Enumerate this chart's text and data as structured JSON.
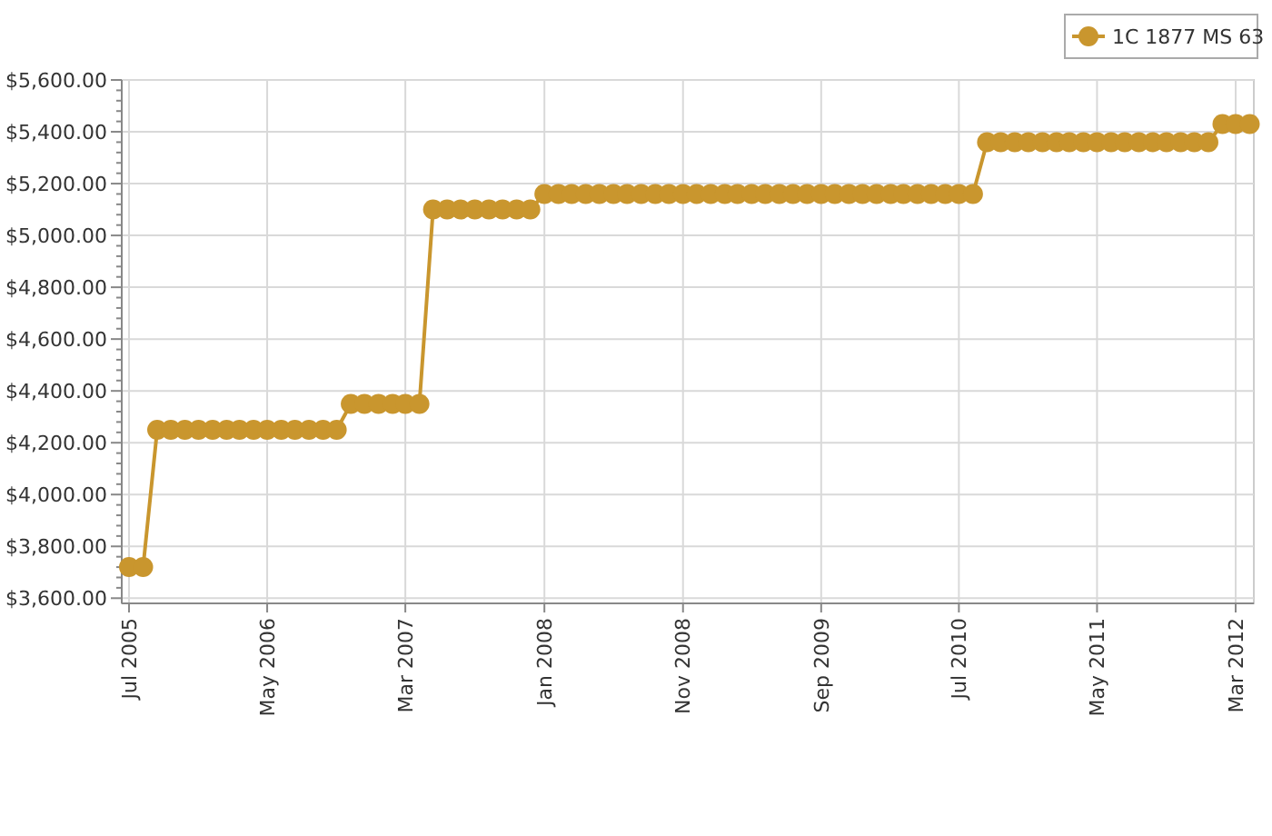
{
  "chart_data": {
    "type": "line",
    "x": [
      "2005-07",
      "2005-08",
      "2005-09",
      "2005-10",
      "2005-11",
      "2005-12",
      "2006-01",
      "2006-02",
      "2006-03",
      "2006-04",
      "2006-05",
      "2006-06",
      "2006-07",
      "2006-08",
      "2006-09",
      "2006-10",
      "2006-11",
      "2006-12",
      "2007-01",
      "2007-02",
      "2007-03",
      "2007-04",
      "2007-05",
      "2007-06",
      "2007-07",
      "2007-08",
      "2007-09",
      "2007-10",
      "2007-11",
      "2007-12",
      "2008-01",
      "2008-02",
      "2008-03",
      "2008-04",
      "2008-05",
      "2008-06",
      "2008-07",
      "2008-08",
      "2008-09",
      "2008-10",
      "2008-11",
      "2008-12",
      "2009-01",
      "2009-02",
      "2009-03",
      "2009-04",
      "2009-05",
      "2009-06",
      "2009-07",
      "2009-08",
      "2009-09",
      "2009-10",
      "2009-11",
      "2009-12",
      "2010-01",
      "2010-02",
      "2010-03",
      "2010-04",
      "2010-05",
      "2010-06",
      "2010-07",
      "2010-08",
      "2010-09",
      "2010-10",
      "2010-11",
      "2010-12",
      "2011-01",
      "2011-02",
      "2011-03",
      "2011-04",
      "2011-05",
      "2011-06",
      "2011-07",
      "2011-08",
      "2011-09",
      "2011-10",
      "2011-11",
      "2011-12",
      "2012-01",
      "2012-02",
      "2012-03",
      "2012-04"
    ],
    "series": [
      {
        "name": "1C 1877 MS 63",
        "color": "#c9962e",
        "values": [
          3720,
          3720,
          4250,
          4250,
          4250,
          4250,
          4250,
          4250,
          4250,
          4250,
          4250,
          4250,
          4250,
          4250,
          4250,
          4250,
          4350,
          4350,
          4350,
          4350,
          4350,
          4350,
          5100,
          5100,
          5100,
          5100,
          5100,
          5100,
          5100,
          5100,
          5160,
          5160,
          5160,
          5160,
          5160,
          5160,
          5160,
          5160,
          5160,
          5160,
          5160,
          5160,
          5160,
          5160,
          5160,
          5160,
          5160,
          5160,
          5160,
          5160,
          5160,
          5160,
          5160,
          5160,
          5160,
          5160,
          5160,
          5160,
          5160,
          5160,
          5160,
          5160,
          5360,
          5360,
          5360,
          5360,
          5360,
          5360,
          5360,
          5360,
          5360,
          5360,
          5360,
          5360,
          5360,
          5360,
          5360,
          5360,
          5360,
          5430,
          5430,
          5430
        ]
      }
    ],
    "xlim": [
      "2005-06-15",
      "2012-04-10"
    ],
    "xticks": [
      {
        "value": "2005-07",
        "label": "Jul 2005"
      },
      {
        "value": "2006-05",
        "label": "May 2006"
      },
      {
        "value": "2007-03",
        "label": "Mar 2007"
      },
      {
        "value": "2008-01",
        "label": "Jan 2008"
      },
      {
        "value": "2008-11",
        "label": "Nov 2008"
      },
      {
        "value": "2009-09",
        "label": "Sep 2009"
      },
      {
        "value": "2010-07",
        "label": "Jul 2010"
      },
      {
        "value": "2011-05",
        "label": "May 2011"
      },
      {
        "value": "2012-03",
        "label": "Mar 2012"
      }
    ],
    "ylim": [
      3580,
      5600
    ],
    "yticks": [
      {
        "value": 3600,
        "label": "$3,600.00"
      },
      {
        "value": 3800,
        "label": "$3,800.00"
      },
      {
        "value": 4000,
        "label": "$4,000.00"
      },
      {
        "value": 4200,
        "label": "$4,200.00"
      },
      {
        "value": 4400,
        "label": "$4,400.00"
      },
      {
        "value": 4600,
        "label": "$4,600.00"
      },
      {
        "value": 4800,
        "label": "$4,800.00"
      },
      {
        "value": 5000,
        "label": "$5,000.00"
      },
      {
        "value": 5200,
        "label": "$5,200.00"
      },
      {
        "value": 5400,
        "label": "$5,400.00"
      },
      {
        "value": 5600,
        "label": "$5,600.00"
      }
    ],
    "grid": true,
    "legend": "top right",
    "marker": "circle",
    "line_style": "solid"
  }
}
